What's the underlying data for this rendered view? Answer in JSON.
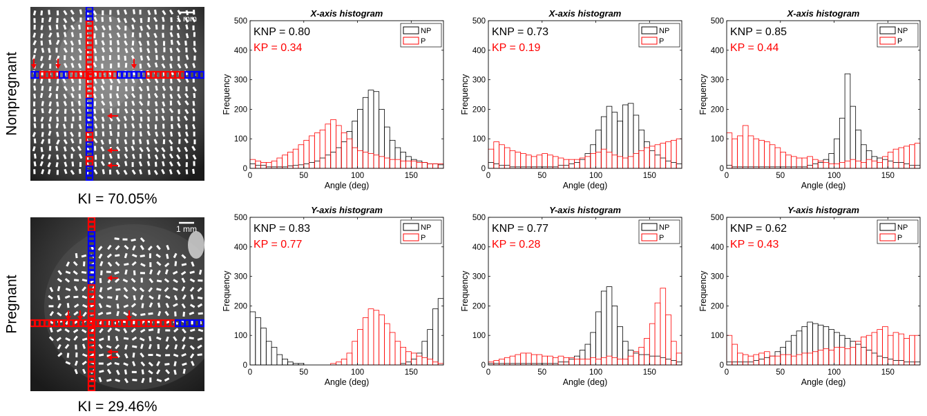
{
  "rows": [
    {
      "label": "Nonpregnant",
      "ki": "KI = 70.05%",
      "scale": "1 mm"
    },
    {
      "label": "Pregnant",
      "ki": "KI = 29.46%",
      "scale": "1 mm"
    }
  ],
  "colors": {
    "np": "#000000",
    "p": "#ff0000",
    "blue": "#0000ff",
    "red": "#ff0000"
  },
  "chart_data": [
    {
      "type": "bar",
      "title": "X-axis histogram",
      "title_axis": "X",
      "title_rest": "-axis histogram",
      "xlabel": "Angle (deg)",
      "ylabel": "Frequency",
      "xlim": [
        0,
        180
      ],
      "ylim": [
        0,
        500
      ],
      "xticks": [
        0,
        50,
        100,
        150
      ],
      "yticks": [
        0,
        100,
        200,
        300,
        400,
        500
      ],
      "knp": "KNP = 0.80",
      "kp": "KP = 0.34",
      "legend": [
        "NP",
        "P"
      ],
      "legend_position": "top-right",
      "bin_width": 5,
      "series": [
        {
          "name": "NP",
          "values": [
            15,
            10,
            10,
            5,
            5,
            5,
            5,
            8,
            10,
            12,
            15,
            20,
            25,
            35,
            45,
            55,
            70,
            90,
            125,
            160,
            200,
            240,
            265,
            260,
            200,
            140,
            95,
            70,
            55,
            40,
            30,
            25,
            20,
            15,
            15,
            12
          ]
        },
        {
          "name": "P",
          "values": [
            30,
            25,
            20,
            20,
            25,
            35,
            45,
            55,
            65,
            80,
            95,
            110,
            120,
            130,
            150,
            165,
            145,
            120,
            100,
            70,
            60,
            55,
            50,
            45,
            40,
            35,
            30,
            30,
            25,
            25,
            25,
            20,
            20,
            15,
            15,
            15
          ]
        }
      ]
    },
    {
      "type": "bar",
      "title": "X-axis histogram",
      "title_axis": "X",
      "title_rest": "-axis histogram",
      "xlabel": "Angle (deg)",
      "ylabel": "Frequency",
      "xlim": [
        0,
        180
      ],
      "ylim": [
        0,
        500
      ],
      "xticks": [
        0,
        50,
        100,
        150
      ],
      "yticks": [
        0,
        100,
        200,
        300,
        400,
        500
      ],
      "knp": "KNP = 0.73",
      "kp": "KP = 0.19",
      "legend": [
        "NP",
        "P"
      ],
      "legend_position": "top-right",
      "bin_width": 5,
      "series": [
        {
          "name": "NP",
          "values": [
            20,
            15,
            10,
            10,
            5,
            5,
            5,
            5,
            5,
            5,
            5,
            5,
            5,
            10,
            10,
            15,
            20,
            30,
            50,
            80,
            130,
            175,
            210,
            190,
            160,
            215,
            220,
            180,
            130,
            90,
            60,
            45,
            35,
            25,
            20,
            15
          ]
        },
        {
          "name": "P",
          "values": [
            65,
            90,
            80,
            70,
            60,
            55,
            50,
            45,
            40,
            45,
            50,
            45,
            40,
            35,
            30,
            30,
            30,
            35,
            40,
            50,
            55,
            65,
            55,
            45,
            40,
            35,
            40,
            50,
            60,
            70,
            75,
            80,
            85,
            90,
            95,
            100
          ]
        }
      ]
    },
    {
      "type": "bar",
      "title": "X-axis histogram",
      "title_axis": "X",
      "title_rest": "-axis histogram",
      "xlabel": "Angle (deg)",
      "ylabel": "Frequency",
      "xlim": [
        0,
        180
      ],
      "ylim": [
        0,
        500
      ],
      "xticks": [
        0,
        50,
        100,
        150
      ],
      "yticks": [
        0,
        100,
        200,
        300,
        400,
        500
      ],
      "knp": "KNP = 0.85",
      "kp": "KP = 0.44",
      "legend": [
        "NP",
        "P"
      ],
      "legend_position": "top-right",
      "bin_width": 5,
      "series": [
        {
          "name": "NP",
          "values": [
            10,
            5,
            5,
            5,
            5,
            5,
            5,
            5,
            5,
            5,
            5,
            5,
            5,
            5,
            5,
            10,
            15,
            20,
            30,
            50,
            100,
            170,
            320,
            210,
            130,
            80,
            60,
            40,
            35,
            30,
            25,
            20,
            20,
            15,
            10,
            10
          ]
        },
        {
          "name": "P",
          "values": [
            120,
            100,
            110,
            145,
            110,
            100,
            95,
            90,
            80,
            70,
            55,
            45,
            40,
            35,
            35,
            40,
            30,
            25,
            20,
            15,
            15,
            20,
            25,
            30,
            25,
            20,
            30,
            25,
            20,
            40,
            55,
            65,
            70,
            75,
            80,
            85
          ]
        }
      ]
    },
    {
      "type": "bar",
      "title": "Y-axis histogram",
      "title_axis": "Y",
      "title_rest": "-axis histogram",
      "xlabel": "Angle (deg)",
      "ylabel": "Frequency",
      "xlim": [
        0,
        180
      ],
      "ylim": [
        0,
        500
      ],
      "xticks": [
        0,
        50,
        100,
        150
      ],
      "yticks": [
        0,
        100,
        200,
        300,
        400,
        500
      ],
      "knp": "KNP = 0.83",
      "kp": "KP = 0.77",
      "legend": [
        "NP",
        "P"
      ],
      "legend_position": "top-right",
      "bin_width": 5,
      "series": [
        {
          "name": "NP",
          "values": [
            180,
            160,
            125,
            80,
            60,
            35,
            20,
            10,
            5,
            5,
            0,
            0,
            0,
            0,
            0,
            0,
            0,
            0,
            0,
            0,
            0,
            0,
            0,
            0,
            0,
            0,
            0,
            0,
            5,
            10,
            20,
            40,
            80,
            120,
            190,
            225
          ]
        },
        {
          "name": "P",
          "values": [
            0,
            0,
            0,
            0,
            0,
            0,
            0,
            0,
            0,
            0,
            0,
            0,
            0,
            0,
            0,
            5,
            10,
            20,
            40,
            80,
            120,
            160,
            190,
            185,
            170,
            140,
            110,
            80,
            60,
            45,
            40,
            30,
            25,
            20,
            10,
            5
          ]
        }
      ]
    },
    {
      "type": "bar",
      "title": "Y-axis histogram",
      "title_axis": "Y",
      "title_rest": "-axis histogram",
      "xlabel": "Angle (deg)",
      "ylabel": "Frequency",
      "xlim": [
        0,
        180
      ],
      "ylim": [
        0,
        500
      ],
      "xticks": [
        0,
        50,
        100,
        150
      ],
      "yticks": [
        0,
        100,
        200,
        300,
        400,
        500
      ],
      "knp": "KNP = 0.77",
      "kp": "KP = 0.28",
      "legend": [
        "NP",
        "P"
      ],
      "legend_position": "top-right",
      "bin_width": 5,
      "series": [
        {
          "name": "NP",
          "values": [
            5,
            5,
            5,
            5,
            5,
            5,
            5,
            5,
            5,
            5,
            5,
            5,
            5,
            10,
            10,
            20,
            30,
            50,
            70,
            110,
            180,
            250,
            265,
            200,
            130,
            80,
            50,
            40,
            35,
            35,
            30,
            30,
            25,
            20,
            15,
            10
          ]
        },
        {
          "name": "P",
          "values": [
            10,
            15,
            20,
            25,
            30,
            35,
            40,
            40,
            35,
            35,
            30,
            30,
            25,
            30,
            25,
            25,
            20,
            20,
            20,
            25,
            20,
            25,
            30,
            25,
            20,
            20,
            30,
            45,
            60,
            90,
            140,
            210,
            260,
            170,
            80,
            40
          ]
        }
      ]
    },
    {
      "type": "bar",
      "title": "Y-axis histogram",
      "title_axis": "Y",
      "title_rest": "-axis histogram",
      "xlabel": "Angle (deg)",
      "ylabel": "Frequency",
      "xlim": [
        0,
        180
      ],
      "ylim": [
        0,
        500
      ],
      "xticks": [
        0,
        50,
        100,
        150
      ],
      "yticks": [
        0,
        100,
        200,
        300,
        400,
        500
      ],
      "knp": "KNP = 0.62",
      "kp": "KP = 0.43",
      "legend": [
        "NP",
        "P"
      ],
      "legend_position": "top-right",
      "bin_width": 5,
      "series": [
        {
          "name": "NP",
          "values": [
            10,
            10,
            10,
            10,
            10,
            15,
            20,
            25,
            30,
            45,
            60,
            80,
            100,
            115,
            130,
            145,
            140,
            135,
            130,
            120,
            110,
            100,
            90,
            80,
            70,
            60,
            50,
            40,
            30,
            25,
            20,
            15,
            15,
            10,
            10,
            10
          ]
        },
        {
          "name": "P",
          "values": [
            100,
            70,
            40,
            35,
            30,
            35,
            40,
            45,
            30,
            30,
            35,
            35,
            30,
            35,
            40,
            40,
            45,
            50,
            55,
            50,
            60,
            60,
            55,
            60,
            80,
            95,
            100,
            110,
            120,
            130,
            100,
            110,
            105,
            90,
            100,
            100
          ]
        }
      ]
    }
  ]
}
